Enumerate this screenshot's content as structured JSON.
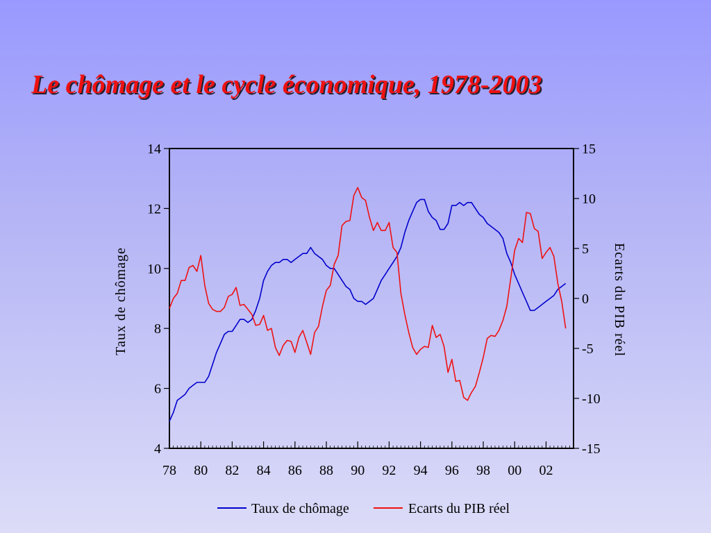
{
  "slide": {
    "title": "Le chômage et le cycle économique, 1978-2003"
  },
  "colors": {
    "title": "#ee1111",
    "unemployment": "#0000cc",
    "gdp_gap": "#ee1111"
  },
  "chart_data": {
    "type": "line",
    "grid": false,
    "legend_position": "bottom",
    "xlabel": "",
    "x_tick_labels": [
      "78",
      "80",
      "82",
      "84",
      "86",
      "88",
      "90",
      "92",
      "94",
      "96",
      "98",
      "00",
      "02"
    ],
    "x_tick_years": [
      1978,
      1980,
      1982,
      1984,
      1986,
      1988,
      1990,
      1992,
      1994,
      1996,
      1998,
      2000,
      2002
    ],
    "xlim": [
      1978,
      2003.75
    ],
    "y_left": {
      "label": "Taux de chômage",
      "lim": [
        4,
        14
      ],
      "ticks": [
        "4",
        "6",
        "8",
        "10",
        "12",
        "14"
      ]
    },
    "y_right": {
      "label": "Ecarts du PIB réel",
      "lim": [
        -15,
        15
      ],
      "ticks": [
        "-15",
        "-10",
        "-5",
        "0",
        "5",
        "10",
        "15"
      ]
    },
    "series": [
      {
        "name": "Taux de chômage",
        "axis": "left",
        "x": [
          1978.0,
          1978.25,
          1978.5,
          1978.75,
          1979.0,
          1979.25,
          1979.5,
          1979.75,
          1980.0,
          1980.25,
          1980.5,
          1980.75,
          1981.0,
          1981.25,
          1981.5,
          1981.75,
          1982.0,
          1982.25,
          1982.5,
          1982.75,
          1983.0,
          1983.25,
          1983.5,
          1983.75,
          1984.0,
          1984.25,
          1984.5,
          1984.75,
          1985.0,
          1985.25,
          1985.5,
          1985.75,
          1986.0,
          1986.25,
          1986.5,
          1986.75,
          1987.0,
          1987.25,
          1987.5,
          1987.75,
          1988.0,
          1988.25,
          1988.5,
          1988.75,
          1989.0,
          1989.25,
          1989.5,
          1989.75,
          1990.0,
          1990.25,
          1990.5,
          1990.75,
          1991.0,
          1991.25,
          1991.5,
          1991.75,
          1992.0,
          1992.25,
          1992.5,
          1992.75,
          1993.0,
          1993.25,
          1993.5,
          1993.75,
          1994.0,
          1994.25,
          1994.5,
          1994.75,
          1995.0,
          1995.25,
          1995.5,
          1995.75,
          1996.0,
          1996.25,
          1996.5,
          1996.75,
          1997.0,
          1997.25,
          1997.5,
          1997.75,
          1998.0,
          1998.25,
          1998.5,
          1998.75,
          1999.0,
          1999.25,
          1999.5,
          1999.75,
          2000.0,
          2000.25,
          2000.5,
          2000.75,
          2001.0,
          2001.25,
          2001.5,
          2001.75,
          2002.0,
          2002.25,
          2002.5,
          2002.75,
          2003.0,
          2003.25
        ],
        "values": [
          4.9,
          5.2,
          5.6,
          5.7,
          5.8,
          6.0,
          6.1,
          6.2,
          6.2,
          6.2,
          6.4,
          6.8,
          7.2,
          7.5,
          7.8,
          7.9,
          7.9,
          8.1,
          8.3,
          8.3,
          8.2,
          8.3,
          8.6,
          9.0,
          9.6,
          9.9,
          10.1,
          10.2,
          10.2,
          10.3,
          10.3,
          10.2,
          10.3,
          10.4,
          10.5,
          10.5,
          10.7,
          10.5,
          10.4,
          10.3,
          10.1,
          10.0,
          10.0,
          9.8,
          9.6,
          9.4,
          9.3,
          9.0,
          8.9,
          8.9,
          8.8,
          8.9,
          9.0,
          9.3,
          9.6,
          9.8,
          10.0,
          10.2,
          10.4,
          10.7,
          11.2,
          11.6,
          11.9,
          12.2,
          12.3,
          12.3,
          11.9,
          11.7,
          11.6,
          11.3,
          11.3,
          11.5,
          12.1,
          12.1,
          12.2,
          12.1,
          12.2,
          12.2,
          12.0,
          11.8,
          11.7,
          11.5,
          11.4,
          11.3,
          11.2,
          11.0,
          10.5,
          10.2,
          9.8,
          9.5,
          9.2,
          8.9,
          8.6,
          8.6,
          8.7,
          8.8,
          8.9,
          9.0,
          9.1,
          9.3,
          9.4,
          9.5
        ]
      },
      {
        "name": "Ecarts du PIB réel",
        "axis": "right",
        "x": [
          1978.0,
          1978.25,
          1978.5,
          1978.75,
          1979.0,
          1979.25,
          1979.5,
          1979.75,
          1980.0,
          1980.25,
          1980.5,
          1980.75,
          1981.0,
          1981.25,
          1981.5,
          1981.75,
          1982.0,
          1982.25,
          1982.5,
          1982.75,
          1983.0,
          1983.25,
          1983.5,
          1983.75,
          1984.0,
          1984.25,
          1984.5,
          1984.75,
          1985.0,
          1985.25,
          1985.5,
          1985.75,
          1986.0,
          1986.25,
          1986.5,
          1986.75,
          1987.0,
          1987.25,
          1987.5,
          1987.75,
          1988.0,
          1988.25,
          1988.5,
          1988.75,
          1989.0,
          1989.25,
          1989.5,
          1989.75,
          1990.0,
          1990.25,
          1990.5,
          1990.75,
          1991.0,
          1991.25,
          1991.5,
          1991.75,
          1992.0,
          1992.25,
          1992.5,
          1992.75,
          1993.0,
          1993.25,
          1993.5,
          1993.75,
          1994.0,
          1994.25,
          1994.5,
          1994.75,
          1995.0,
          1995.25,
          1995.5,
          1995.75,
          1996.0,
          1996.25,
          1996.5,
          1996.75,
          1997.0,
          1997.25,
          1997.5,
          1997.75,
          1998.0,
          1998.25,
          1998.5,
          1998.75,
          1999.0,
          1999.25,
          1999.5,
          1999.75,
          2000.0,
          2000.25,
          2000.5,
          2000.75,
          2001.0,
          2001.25,
          2001.5,
          2001.75,
          2002.0,
          2002.25,
          2002.5,
          2002.75,
          2003.0,
          2003.25
        ],
        "values": [
          -1.0,
          0.0,
          0.5,
          1.8,
          1.8,
          3.1,
          3.3,
          2.7,
          4.3,
          1.3,
          -0.5,
          -1.1,
          -1.3,
          -1.3,
          -0.9,
          0.2,
          0.4,
          1.1,
          -0.7,
          -0.6,
          -1.1,
          -1.6,
          -2.7,
          -2.6,
          -1.7,
          -3.2,
          -3.0,
          -4.9,
          -5.7,
          -4.7,
          -4.2,
          -4.3,
          -5.4,
          -3.9,
          -3.2,
          -4.4,
          -5.6,
          -3.4,
          -2.8,
          -0.8,
          0.8,
          1.3,
          3.4,
          4.3,
          7.3,
          7.7,
          7.8,
          10.3,
          11.1,
          10.1,
          9.8,
          8.1,
          6.8,
          7.6,
          6.8,
          6.8,
          7.6,
          5.1,
          4.6,
          0.5,
          -1.6,
          -3.4,
          -4.9,
          -5.6,
          -5.1,
          -4.8,
          -4.9,
          -2.7,
          -3.9,
          -3.6,
          -4.8,
          -7.4,
          -6.1,
          -8.3,
          -8.2,
          -9.9,
          -10.2,
          -9.4,
          -8.8,
          -7.4,
          -5.9,
          -4.0,
          -3.7,
          -3.8,
          -3.2,
          -2.2,
          -0.8,
          2.0,
          4.8,
          6.0,
          5.6,
          8.6,
          8.5,
          7.0,
          6.7,
          4.0,
          4.6,
          5.1,
          4.2,
          1.5,
          -0.3,
          -3.0
        ]
      }
    ]
  }
}
